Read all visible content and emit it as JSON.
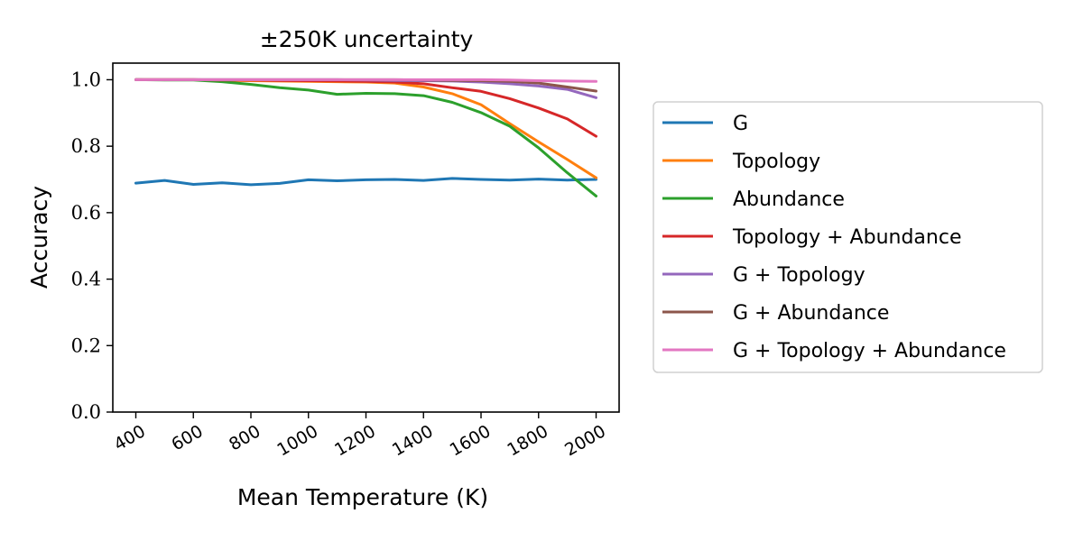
{
  "chart_data": {
    "type": "line",
    "title": "±250K uncertainty",
    "xlabel": "Mean Temperature (K)",
    "ylabel": "Accuracy",
    "xlim": [
      320,
      2080
    ],
    "ylim": [
      0.0,
      1.05
    ],
    "xticks": [
      400,
      600,
      800,
      1000,
      1200,
      1400,
      1600,
      1800,
      2000
    ],
    "yticks": [
      "0.0",
      "0.2",
      "0.4",
      "0.6",
      "0.8",
      "1.0"
    ],
    "legend_position": "right",
    "grid": false,
    "x": [
      400,
      500,
      600,
      700,
      800,
      900,
      1000,
      1100,
      1200,
      1300,
      1400,
      1500,
      1600,
      1700,
      1800,
      1900,
      2000
    ],
    "series": [
      {
        "name": "G",
        "color": "#1f77b4",
        "values": [
          0.689,
          0.697,
          0.685,
          0.69,
          0.684,
          0.688,
          0.699,
          0.696,
          0.699,
          0.7,
          0.697,
          0.703,
          0.7,
          0.698,
          0.701,
          0.698,
          0.7
        ]
      },
      {
        "name": "Topology",
        "color": "#ff7f0e",
        "values": [
          1.0,
          1.0,
          1.0,
          0.998,
          0.997,
          0.996,
          0.995,
          0.994,
          0.993,
          0.99,
          0.978,
          0.958,
          0.925,
          0.868,
          0.813,
          0.76,
          0.705
        ]
      },
      {
        "name": "Abundance",
        "color": "#2ca02c",
        "values": [
          1.0,
          0.999,
          0.999,
          0.994,
          0.986,
          0.976,
          0.969,
          0.956,
          0.959,
          0.958,
          0.952,
          0.932,
          0.901,
          0.86,
          0.795,
          0.72,
          0.65
        ]
      },
      {
        "name": "Topology + Abundance",
        "color": "#d62728",
        "values": [
          1.0,
          1.0,
          1.0,
          0.999,
          0.999,
          0.998,
          0.997,
          0.996,
          0.995,
          0.993,
          0.988,
          0.976,
          0.965,
          0.943,
          0.915,
          0.882,
          0.83
        ]
      },
      {
        "name": "G + Topology",
        "color": "#9467bd",
        "values": [
          1.0,
          1.0,
          1.0,
          1.0,
          1.0,
          1.0,
          1.0,
          1.0,
          0.999,
          0.998,
          0.997,
          0.996,
          0.993,
          0.988,
          0.981,
          0.971,
          0.946
        ]
      },
      {
        "name": "G + Abundance",
        "color": "#8c564b",
        "values": [
          1.0,
          1.0,
          1.0,
          1.0,
          1.0,
          1.0,
          1.0,
          1.0,
          1.0,
          1.0,
          0.999,
          0.998,
          0.997,
          0.995,
          0.99,
          0.978,
          0.966
        ]
      },
      {
        "name": "G + Topology + Abundance",
        "color": "#e377c2",
        "values": [
          1.0,
          1.0,
          1.0,
          1.0,
          1.0,
          1.0,
          1.0,
          1.0,
          1.0,
          1.0,
          1.0,
          1.0,
          1.0,
          0.999,
          0.997,
          0.996,
          0.995
        ]
      }
    ]
  }
}
